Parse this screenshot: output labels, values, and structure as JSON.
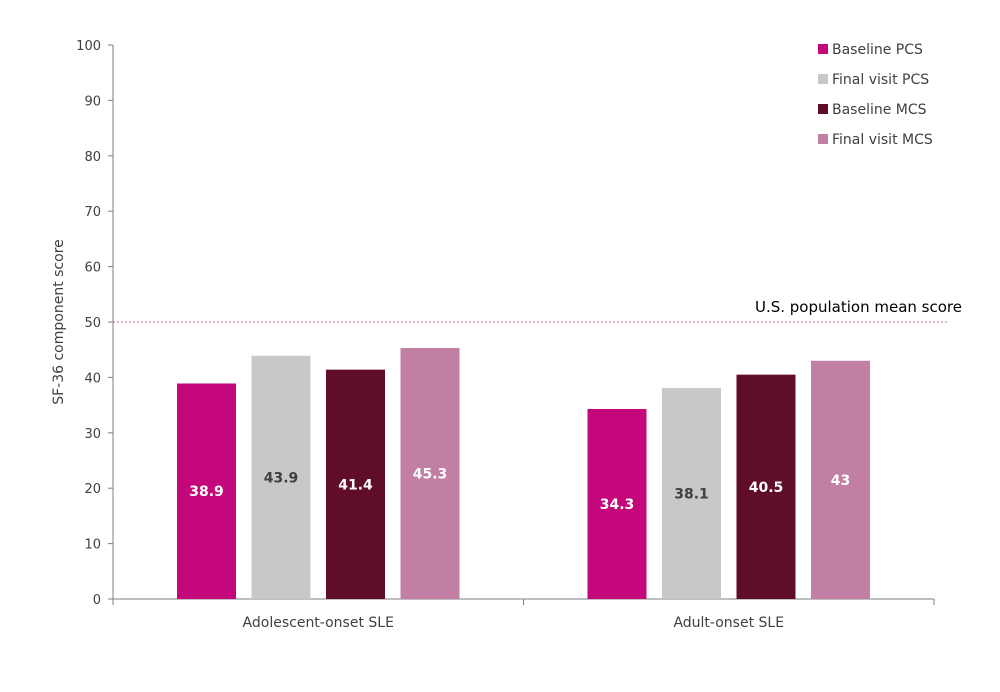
{
  "chart_data": {
    "type": "bar",
    "title": "",
    "xlabel": "",
    "ylabel": "SF-36 component score",
    "ylim": [
      0,
      100
    ],
    "yticks": [
      0,
      10,
      20,
      30,
      40,
      50,
      60,
      70,
      80,
      90,
      100
    ],
    "grid": false,
    "legend_position": "top-right",
    "categories": [
      "Adolescent-onset SLE",
      "Adult-onset SLE"
    ],
    "series": [
      {
        "name": "Baseline PCS",
        "values": [
          38.9,
          34.3
        ],
        "labels": [
          "38.9",
          "34.3"
        ],
        "color": "#C4087C",
        "label_color": "#FFFFFF"
      },
      {
        "name": "Final visit PCS",
        "values": [
          43.9,
          38.1
        ],
        "labels": [
          "43.9",
          "38.1"
        ],
        "color": "#C8C8C8",
        "label_color": "#404040"
      },
      {
        "name": "Baseline MCS",
        "values": [
          41.4,
          40.5
        ],
        "labels": [
          "41.4",
          "40.5"
        ],
        "color": "#600D2C",
        "label_color": "#FFFFFF"
      },
      {
        "name": "Final visit MCS",
        "values": [
          45.3,
          43
        ],
        "labels": [
          "45.3",
          "43"
        ],
        "color": "#C07FA3",
        "label_color": "#FFFFFF"
      }
    ],
    "reference_line": {
      "value": 50,
      "label": "U.S. population mean score",
      "color": "#D0607F"
    }
  }
}
